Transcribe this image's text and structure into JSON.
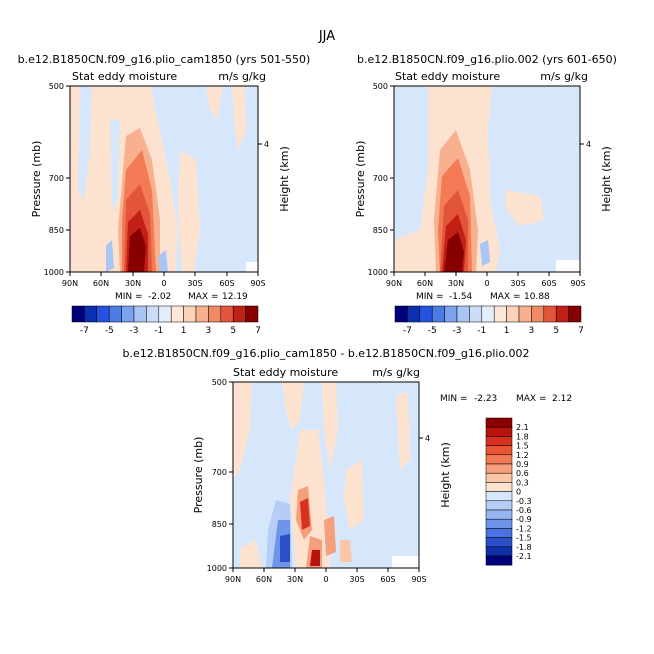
{
  "figure_title": "JJA",
  "chart_data": [
    {
      "type": "heatmap",
      "title": "b.e12.B1850CN.f09_g16.plio_cam1850 (yrs 501-550)",
      "subtitle_left": "Stat eddy moisture",
      "subtitle_right": "m/s g/kg",
      "ylabel": "Pressure (mb)",
      "ylabel_right": "Height (km)",
      "x_ticks": [
        "90N",
        "60N",
        "30N",
        "0",
        "30S",
        "60S",
        "90S"
      ],
      "y_ticks": [
        "500",
        "700",
        "850",
        "1000"
      ],
      "y_right_ticks": [
        "4"
      ],
      "min_label": "MIN =",
      "min_value": "-2.02",
      "max_label": "MAX =",
      "max_value": "12.19",
      "colorbar_labels": [
        "-7",
        "-5",
        "-3",
        "-1",
        "1",
        "3",
        "5",
        "7"
      ]
    },
    {
      "type": "heatmap",
      "title": "b.e12.B1850CN.f09_g16.plio.002 (yrs 601-650)",
      "subtitle_left": "Stat eddy moisture",
      "subtitle_right": "m/s g/kg",
      "ylabel": "Pressure (mb)",
      "ylabel_right": "Height (km)",
      "x_ticks": [
        "90N",
        "60N",
        "30N",
        "0",
        "30S",
        "60S",
        "90S"
      ],
      "y_ticks": [
        "500",
        "700",
        "850",
        "1000"
      ],
      "y_right_ticks": [
        "4"
      ],
      "min_label": "MIN =",
      "min_value": "-1.54",
      "max_label": "MAX =",
      "max_value": "10.88",
      "colorbar_labels": [
        "-7",
        "-5",
        "-3",
        "-1",
        "1",
        "3",
        "5",
        "7"
      ]
    },
    {
      "type": "heatmap",
      "title": "b.e12.B1850CN.f09_g16.plio_cam1850 - b.e12.B1850CN.f09_g16.plio.002",
      "subtitle_left": "Stat eddy moisture",
      "subtitle_right": "m/s g/kg",
      "ylabel": "Pressure (mb)",
      "ylabel_right": "Height (km)",
      "x_ticks": [
        "90N",
        "60N",
        "30N",
        "0",
        "30S",
        "60S",
        "90S"
      ],
      "y_ticks": [
        "500",
        "700",
        "850",
        "1000"
      ],
      "y_right_ticks": [
        "4"
      ],
      "min_label": "MIN =",
      "min_value": "-2.23",
      "max_label": "MAX =",
      "max_value": "2.12",
      "colorbar_labels": [
        "2.1",
        "1.8",
        "1.5",
        "1.2",
        "0.9",
        "0.6",
        "0.3",
        "0",
        "-0.3",
        "-0.6",
        "-0.9",
        "-1.2",
        "-1.5",
        "-1.8",
        "-2.1"
      ]
    }
  ],
  "colors": {
    "pale_pink": "#fde3cf",
    "pale_blue": "#d7e7fb",
    "red_light": "#f4a582",
    "red_mid": "#ef6a3c",
    "red_strong": "#d7301f",
    "red_dark": "#990000",
    "blue_mid": "#6b9ef0",
    "blue_dark": "#1e3fd0"
  },
  "colorbar_colors_top": [
    "#00007a",
    "#0a2fb0",
    "#2552e0",
    "#4d7be6",
    "#7aa2ef",
    "#a8c5f5",
    "#cbdcf8",
    "#e3edfb",
    "#fde8d8",
    "#fcd2b6",
    "#f8b08e",
    "#f08a66",
    "#e2553a",
    "#c21f15",
    "#870000"
  ],
  "colorbar_colors_bottom": [
    "#8b0000",
    "#b8140d",
    "#d7301f",
    "#ea5536",
    "#f27b55",
    "#f69f7c",
    "#fbc5a7",
    "#fde3cf",
    "#d7e7fb",
    "#b6cef5",
    "#95b5f0",
    "#6f95ea",
    "#4a72e0",
    "#2a4fc9",
    "#102ea8",
    "#00007a"
  ]
}
